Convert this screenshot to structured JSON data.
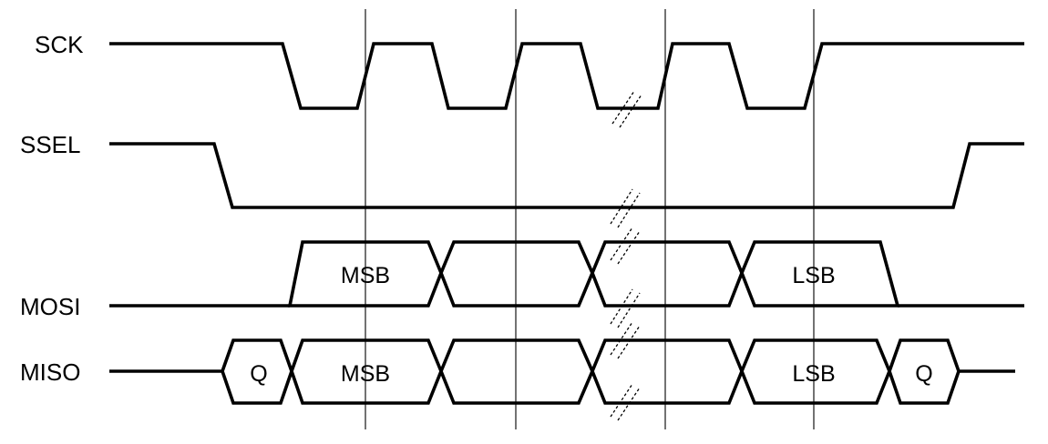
{
  "diagram": {
    "signals": [
      {
        "id": "sck",
        "label": "SCK"
      },
      {
        "id": "ssel",
        "label": "SSEL"
      },
      {
        "id": "mosi",
        "label": "MOSI"
      },
      {
        "id": "miso",
        "label": "MISO"
      }
    ],
    "mosi_cells": [
      "MSB",
      "",
      "",
      "LSB"
    ],
    "miso_cells": [
      "Q",
      "MSB",
      "",
      "",
      "LSB",
      "Q"
    ]
  }
}
